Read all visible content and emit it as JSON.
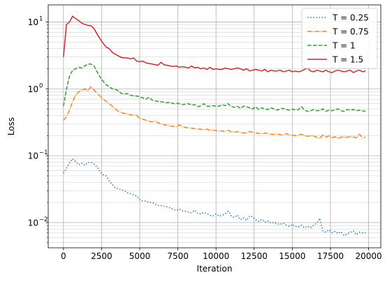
{
  "chart_data": {
    "type": "line",
    "xlabel": "Iteration",
    "ylabel": "Loss",
    "xlim": [
      -1000,
      20800
    ],
    "ylim": [
      0.0042,
      18
    ],
    "yscale": "log",
    "grid": true,
    "legend_position": "top-right",
    "xticks": [
      0,
      2500,
      5000,
      7500,
      10000,
      12500,
      15000,
      17500,
      20000
    ],
    "xtick_labels": [
      "0",
      "2500",
      "5000",
      "7500",
      "10000",
      "12500",
      "15000",
      "17500",
      "20000"
    ],
    "yticks": [
      0.01,
      0.1,
      1,
      10
    ],
    "ytick_labels": [
      [
        "10",
        "−2"
      ],
      [
        "10",
        "−1"
      ],
      [
        "10",
        "0"
      ],
      [
        "10",
        "1"
      ]
    ],
    "series": [
      {
        "name": "T = 0.25",
        "color": "#1f77b4",
        "dash": "dotted",
        "x": [
          0,
          200,
          400,
          600,
          800,
          1000,
          1200,
          1400,
          1600,
          1800,
          2000,
          2200,
          2400,
          2600,
          2800,
          3000,
          3200,
          3400,
          3600,
          3800,
          4000,
          4200,
          4400,
          4600,
          4800,
          5000,
          5200,
          5400,
          5600,
          5800,
          6000,
          6200,
          6400,
          6600,
          6800,
          7000,
          7200,
          7400,
          7600,
          7800,
          8000,
          8200,
          8400,
          8600,
          8800,
          9000,
          9200,
          9400,
          9600,
          9800,
          10000,
          10200,
          10400,
          10600,
          10800,
          11000,
          11200,
          11400,
          11600,
          11800,
          12000,
          12200,
          12400,
          12600,
          12800,
          13000,
          13200,
          13400,
          13600,
          13800,
          14000,
          14200,
          14400,
          14600,
          14800,
          15000,
          15200,
          15400,
          15600,
          15800,
          16000,
          16200,
          16400,
          16600,
          16800,
          17000,
          17200,
          17400,
          17600,
          17800,
          18000,
          18200,
          18400,
          18600,
          18800,
          19000,
          19200,
          19400,
          19600,
          19800
        ],
        "y": [
          0.055,
          0.065,
          0.078,
          0.09,
          0.082,
          0.073,
          0.077,
          0.072,
          0.079,
          0.08,
          0.075,
          0.068,
          0.058,
          0.052,
          0.05,
          0.042,
          0.037,
          0.033,
          0.032,
          0.031,
          0.03,
          0.028,
          0.027,
          0.026,
          0.025,
          0.022,
          0.021,
          0.021,
          0.02,
          0.02,
          0.019,
          0.018,
          0.018,
          0.0175,
          0.0172,
          0.0165,
          0.0158,
          0.0153,
          0.016,
          0.015,
          0.0148,
          0.0143,
          0.014,
          0.0153,
          0.0138,
          0.0135,
          0.0142,
          0.0137,
          0.0128,
          0.0126,
          0.0135,
          0.0125,
          0.0128,
          0.0135,
          0.0148,
          0.0125,
          0.012,
          0.013,
          0.011,
          0.0118,
          0.0108,
          0.0126,
          0.0122,
          0.011,
          0.0104,
          0.0112,
          0.0102,
          0.0106,
          0.0098,
          0.0101,
          0.0096,
          0.0094,
          0.0098,
          0.0092,
          0.0088,
          0.0094,
          0.0087,
          0.0086,
          0.0091,
          0.0083,
          0.0088,
          0.0084,
          0.0092,
          0.0098,
          0.0116,
          0.0075,
          0.0072,
          0.0078,
          0.0071,
          0.0074,
          0.0069,
          0.0073,
          0.0064,
          0.0068,
          0.0072,
          0.0075,
          0.0066,
          0.0072,
          0.007,
          0.0071
        ]
      },
      {
        "name": "T = 0.75",
        "color": "#ff7f0e",
        "dash": "dashdot",
        "x": [
          0,
          200,
          400,
          600,
          800,
          1000,
          1200,
          1400,
          1600,
          1800,
          2000,
          2200,
          2400,
          2600,
          2800,
          3000,
          3200,
          3400,
          3600,
          3800,
          4000,
          4200,
          4400,
          4600,
          4800,
          5000,
          5200,
          5400,
          5600,
          5800,
          6000,
          6200,
          6400,
          6600,
          6800,
          7000,
          7200,
          7400,
          7600,
          7800,
          8000,
          8200,
          8400,
          8600,
          8800,
          9000,
          9200,
          9400,
          9600,
          9800,
          10000,
          10200,
          10400,
          10600,
          10800,
          11000,
          11200,
          11400,
          11600,
          11800,
          12000,
          12200,
          12400,
          12600,
          12800,
          13000,
          13200,
          13400,
          13600,
          13800,
          14000,
          14200,
          14400,
          14600,
          14800,
          15000,
          15200,
          15400,
          15600,
          15800,
          16000,
          16200,
          16400,
          16600,
          16800,
          17000,
          17200,
          17400,
          17600,
          17800,
          18000,
          18200,
          18400,
          18600,
          18800,
          19000,
          19200,
          19400,
          19600,
          19800
        ],
        "y": [
          0.34,
          0.38,
          0.48,
          0.65,
          0.8,
          0.9,
          0.96,
          1.0,
          0.93,
          1.08,
          0.96,
          0.86,
          0.78,
          0.7,
          0.65,
          0.6,
          0.55,
          0.5,
          0.46,
          0.44,
          0.43,
          0.42,
          0.41,
          0.4,
          0.4,
          0.36,
          0.35,
          0.34,
          0.33,
          0.32,
          0.33,
          0.31,
          0.3,
          0.29,
          0.285,
          0.28,
          0.275,
          0.27,
          0.29,
          0.27,
          0.265,
          0.26,
          0.258,
          0.255,
          0.252,
          0.248,
          0.245,
          0.25,
          0.24,
          0.242,
          0.237,
          0.234,
          0.235,
          0.232,
          0.24,
          0.228,
          0.225,
          0.23,
          0.222,
          0.22,
          0.218,
          0.23,
          0.224,
          0.219,
          0.215,
          0.212,
          0.218,
          0.214,
          0.21,
          0.209,
          0.212,
          0.207,
          0.205,
          0.215,
          0.205,
          0.203,
          0.2,
          0.202,
          0.21,
          0.2,
          0.195,
          0.2,
          0.198,
          0.188,
          0.182,
          0.205,
          0.19,
          0.198,
          0.185,
          0.192,
          0.18,
          0.19,
          0.19,
          0.188,
          0.195,
          0.19,
          0.185,
          0.21,
          0.185,
          0.19
        ]
      },
      {
        "name": "T = 1",
        "color": "#2ca02c",
        "dash": "dashed",
        "x": [
          0,
          200,
          400,
          600,
          800,
          1000,
          1200,
          1400,
          1600,
          1800,
          2000,
          2200,
          2400,
          2600,
          2800,
          3000,
          3200,
          3400,
          3600,
          3800,
          4000,
          4200,
          4400,
          4600,
          4800,
          5000,
          5200,
          5400,
          5600,
          5800,
          6000,
          6200,
          6400,
          6600,
          6800,
          7000,
          7200,
          7400,
          7600,
          7800,
          8000,
          8200,
          8400,
          8600,
          8800,
          9000,
          9200,
          9400,
          9600,
          9800,
          10000,
          10200,
          10400,
          10600,
          10800,
          11000,
          11200,
          11400,
          11600,
          11800,
          12000,
          12200,
          12400,
          12600,
          12800,
          13000,
          13200,
          13400,
          13600,
          13800,
          14000,
          14200,
          14400,
          14600,
          14800,
          15000,
          15200,
          15400,
          15600,
          15800,
          16000,
          16200,
          16400,
          16600,
          16800,
          17000,
          17200,
          17400,
          17600,
          17800,
          18000,
          18200,
          18400,
          18600,
          18800,
          19000,
          19200,
          19400,
          19600,
          19800
        ],
        "y": [
          0.55,
          1.0,
          1.55,
          1.9,
          2.0,
          2.1,
          2.05,
          2.2,
          2.35,
          2.35,
          2.2,
          1.8,
          1.5,
          1.3,
          1.15,
          1.08,
          1.0,
          0.98,
          0.93,
          0.85,
          0.84,
          0.85,
          0.8,
          0.79,
          0.78,
          0.76,
          0.73,
          0.7,
          0.75,
          0.68,
          0.66,
          0.65,
          0.64,
          0.63,
          0.62,
          0.63,
          0.6,
          0.61,
          0.6,
          0.58,
          0.59,
          0.6,
          0.57,
          0.58,
          0.54,
          0.56,
          0.6,
          0.55,
          0.55,
          0.56,
          0.55,
          0.55,
          0.58,
          0.56,
          0.6,
          0.54,
          0.53,
          0.55,
          0.51,
          0.55,
          0.54,
          0.52,
          0.5,
          0.54,
          0.49,
          0.52,
          0.5,
          0.49,
          0.52,
          0.5,
          0.48,
          0.5,
          0.51,
          0.49,
          0.48,
          0.5,
          0.48,
          0.49,
          0.54,
          0.48,
          0.46,
          0.47,
          0.49,
          0.47,
          0.48,
          0.5,
          0.46,
          0.48,
          0.47,
          0.49,
          0.5,
          0.47,
          0.46,
          0.49,
          0.48,
          0.49,
          0.47,
          0.48,
          0.47,
          0.46
        ]
      },
      {
        "name": "T = 1.5",
        "color": "#d62728",
        "dash": "solid",
        "x": [
          0,
          200,
          400,
          600,
          800,
          1000,
          1200,
          1400,
          1600,
          1800,
          2000,
          2200,
          2400,
          2600,
          2800,
          3000,
          3200,
          3400,
          3600,
          3800,
          4000,
          4200,
          4400,
          4600,
          4800,
          5000,
          5200,
          5400,
          5600,
          5800,
          6000,
          6200,
          6400,
          6600,
          6800,
          7000,
          7200,
          7400,
          7600,
          7800,
          8000,
          8200,
          8400,
          8600,
          8800,
          9000,
          9200,
          9400,
          9600,
          9800,
          10000,
          10200,
          10400,
          10600,
          10800,
          11000,
          11200,
          11400,
          11600,
          11800,
          12000,
          12200,
          12400,
          12600,
          12800,
          13000,
          13200,
          13400,
          13600,
          13800,
          14000,
          14200,
          14400,
          14600,
          14800,
          15000,
          15200,
          15400,
          15600,
          15800,
          16000,
          16200,
          16400,
          16600,
          16800,
          17000,
          17200,
          17400,
          17600,
          17800,
          18000,
          18200,
          18400,
          18600,
          18800,
          19000,
          19200,
          19400,
          19600,
          19800
        ],
        "y": [
          3.0,
          9.2,
          10.0,
          12.2,
          11.2,
          10.5,
          9.6,
          9.2,
          8.9,
          8.8,
          8.0,
          6.6,
          5.6,
          4.8,
          4.2,
          4.0,
          3.5,
          3.3,
          3.1,
          2.95,
          2.9,
          2.9,
          2.8,
          2.9,
          2.6,
          2.55,
          2.6,
          2.45,
          2.4,
          2.35,
          2.3,
          2.25,
          2.5,
          2.28,
          2.25,
          2.2,
          2.15,
          2.2,
          2.1,
          2.15,
          2.1,
          2.05,
          2.2,
          2.05,
          2.1,
          2.0,
          2.05,
          1.95,
          2.1,
          1.95,
          2.0,
          1.95,
          1.95,
          2.05,
          2.0,
          1.95,
          2.0,
          2.05,
          2.0,
          1.9,
          2.0,
          1.85,
          1.9,
          1.95,
          1.9,
          1.85,
          1.95,
          1.8,
          1.9,
          1.85,
          1.85,
          1.9,
          1.8,
          1.85,
          1.9,
          1.8,
          1.85,
          1.8,
          1.85,
          1.95,
          2.05,
          1.85,
          1.8,
          1.9,
          1.85,
          1.8,
          1.9,
          1.8,
          1.75,
          1.85,
          1.9,
          1.85,
          1.8,
          1.85,
          1.9,
          1.75,
          1.85,
          1.9,
          1.8,
          1.85
        ]
      }
    ]
  }
}
